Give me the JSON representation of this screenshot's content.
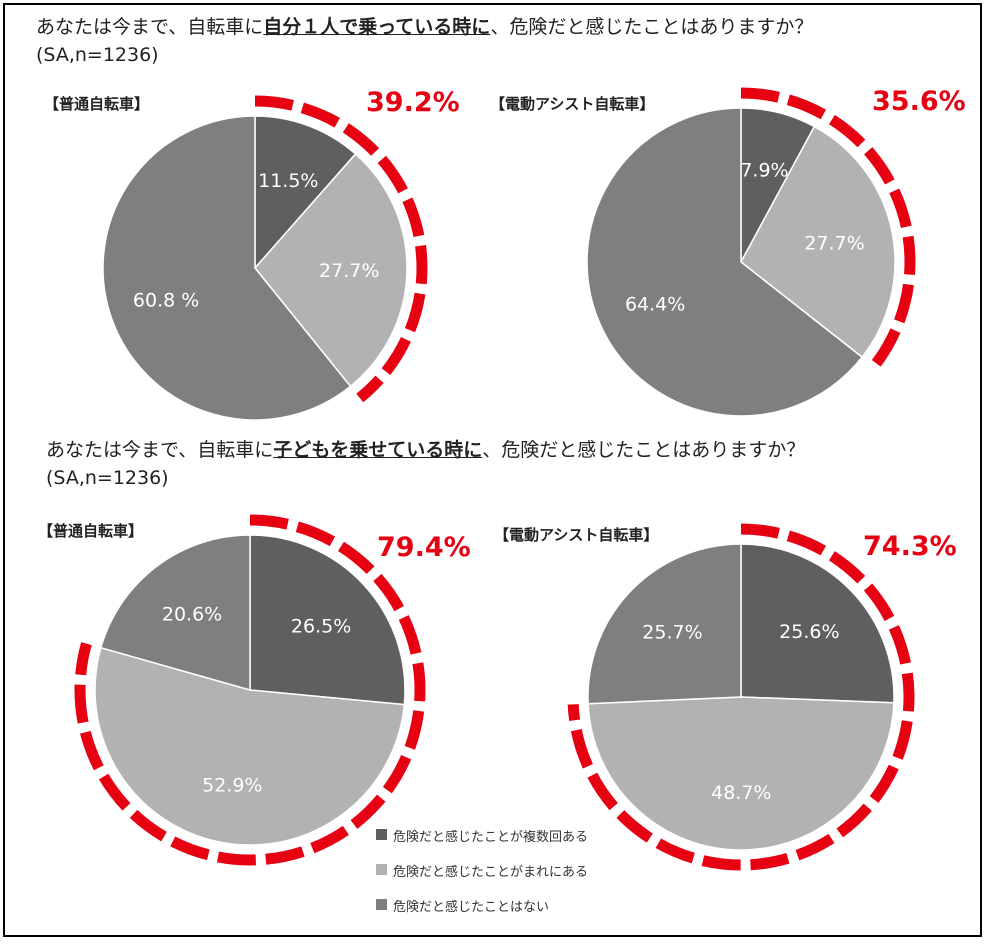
{
  "question1": {
    "pre": "あなたは今まで、自転車に",
    "em": "自分１人で乗っている時に",
    "post": "、危険だと感じたことはありますか？",
    "sample": "(SA,n=1236)"
  },
  "question2": {
    "pre": "あなたは今まで、自転車に",
    "em": "子どもを乗せている時に",
    "post": "、危険だと感じたことはありますか？",
    "sample": "(SA,n=1236)"
  },
  "colors": {
    "often": "#5f5f5f",
    "rarely": "#b2b2b2",
    "never": "#7f7f7f",
    "highlight": "#e60012",
    "slice_text": "#ffffff"
  },
  "legend": [
    {
      "label": "危険だと感じたことが複数回ある",
      "color": "#5f5f5f"
    },
    {
      "label": "危険だと感じたことがまれにある",
      "color": "#b2b2b2"
    },
    {
      "label": "危険だと感じたことはない",
      "color": "#7f7f7f"
    }
  ],
  "chart_data": [
    {
      "type": "pie",
      "title": "【普通自転車】",
      "categories": [
        "危険だと感じたことが複数回ある",
        "危険だと感じたことがまれにある",
        "危険だと感じたことはない"
      ],
      "values": [
        11.5,
        27.7,
        60.8
      ],
      "labels": [
        "11.5%",
        "27.7%",
        "60.8 %"
      ],
      "highlight_total": "39.2%"
    },
    {
      "type": "pie",
      "title": "【電動アシスト自転車】",
      "categories": [
        "危険だと感じたことが複数回ある",
        "危険だと感じたことがまれにある",
        "危険だと感じたことはない"
      ],
      "values": [
        7.9,
        27.7,
        64.4
      ],
      "labels": [
        "7.9%",
        "27.7%",
        "64.4%"
      ],
      "highlight_total": "35.6%"
    },
    {
      "type": "pie",
      "title": "【普通自転車】",
      "categories": [
        "危険だと感じたことが複数回ある",
        "危険だと感じたことがまれにある",
        "危険だと感じたことはない"
      ],
      "values": [
        26.5,
        52.9,
        20.6
      ],
      "labels": [
        "26.5%",
        "52.9%",
        "20.6%"
      ],
      "highlight_total": "79.4%"
    },
    {
      "type": "pie",
      "title": "【電動アシスト自転車】",
      "categories": [
        "危険だと感じたことが複数回ある",
        "危険だと感じたことがまれにある",
        "危険だと感じたことはない"
      ],
      "values": [
        25.6,
        48.7,
        25.7
      ],
      "labels": [
        "25.6%",
        "48.7%",
        "25.7%"
      ],
      "highlight_total": "74.3%"
    }
  ]
}
